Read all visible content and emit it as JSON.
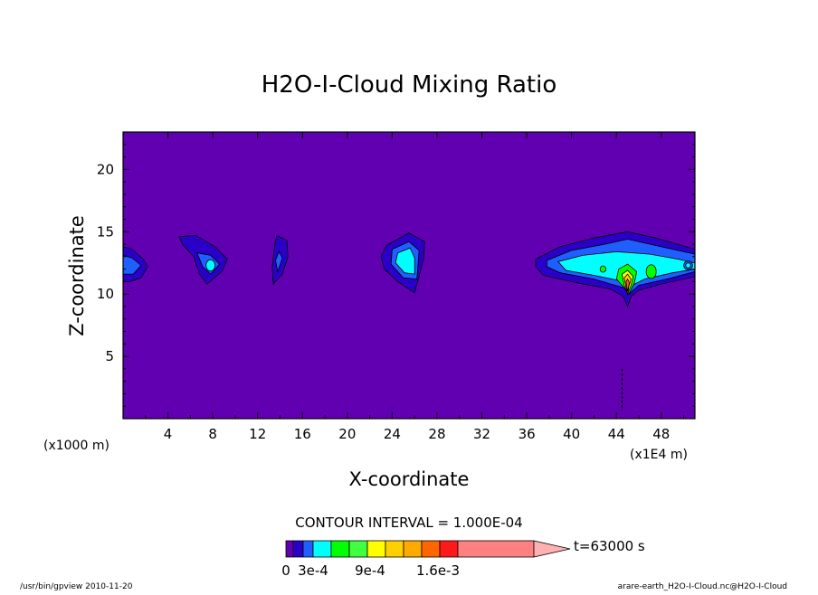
{
  "chart_data": {
    "type": "contour",
    "title": "H2O-I-Cloud Mixing Ratio",
    "xlabel": "X-coordinate",
    "ylabel": "Z-coordinate",
    "x_unit": "(x1E4 m)",
    "y_unit": "(x1000 m)",
    "x_ticks": [
      "4",
      "8",
      "12",
      "16",
      "20",
      "24",
      "28",
      "32",
      "36",
      "40",
      "44",
      "48"
    ],
    "y_ticks": [
      "5",
      "10",
      "15",
      "20"
    ],
    "xlim": [
      0,
      51
    ],
    "ylim": [
      0,
      23
    ],
    "contour_interval_label": "CONTOUR INTERVAL = 1.000E-04",
    "time_label": "t=63000 s",
    "colorbar": {
      "colors": [
        "#6000b0",
        "#2a00c8",
        "#1f5fff",
        "#00ffff",
        "#00ff00",
        "#40ff40",
        "#ffff00",
        "#ffd000",
        "#ffaa00",
        "#ff6600",
        "#ff1a1a",
        "#ff8080",
        "#ffb0b0"
      ],
      "labels": [
        "0",
        "3e-4",
        "9e-4",
        "1.6e-3"
      ]
    },
    "cloud_features": [
      {
        "x_center": 0.5,
        "z_center": 12.3,
        "max_level": "2e-4"
      },
      {
        "x_center": 7.5,
        "z_center": 12.5,
        "max_level": "3e-4"
      },
      {
        "x_center": 14.0,
        "z_center": 12.3,
        "max_level": "2e-4"
      },
      {
        "x_center": 25.0,
        "z_center": 12.2,
        "max_level": "3e-4"
      },
      {
        "x_center": 45.0,
        "z_center": 12.0,
        "max_level": "1.6e-3"
      }
    ],
    "background_color": "#6000b0"
  },
  "footer": {
    "left": "/usr/bin/gpview  2010-11-20",
    "right": "arare-earth_H2O-I-Cloud.nc@H2O-I-Cloud"
  }
}
